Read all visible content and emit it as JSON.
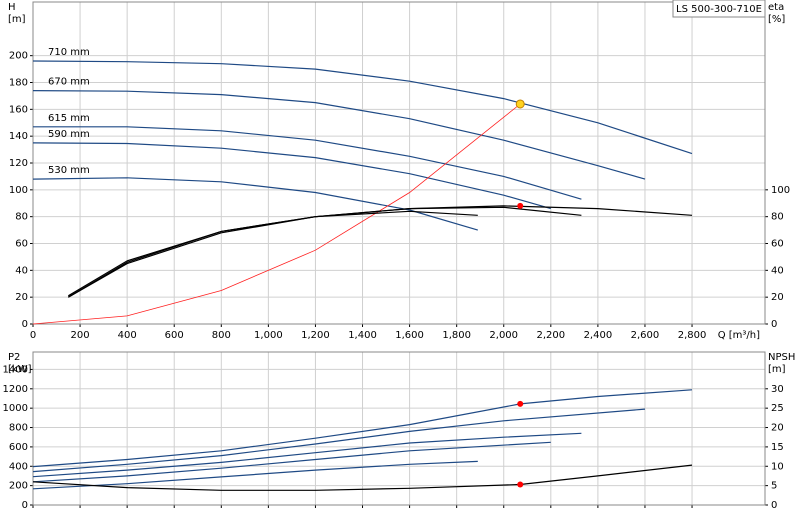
{
  "chart_data": [
    {
      "type": "line",
      "title": "LS 500-300-710E",
      "xlabel": "Q [m³/h]",
      "ylabel": "H",
      "ylabel_unit": "[m]",
      "y2label": "eta",
      "y2label_unit": "[%]",
      "xlim": [
        0,
        3110
      ],
      "xticks": [
        0,
        200,
        400,
        600,
        800,
        {
          "value": 1000,
          "label": "1,000"
        },
        {
          "value": 1200,
          "label": "1,200"
        },
        {
          "value": 1400,
          "label": "1,400"
        },
        {
          "value": 1600,
          "label": "1,600"
        },
        {
          "value": 1800,
          "label": "1,800"
        },
        {
          "value": 2000,
          "label": "2,000"
        },
        {
          "value": 2200,
          "label": "2,200"
        },
        {
          "value": 2400,
          "label": "2,400"
        },
        {
          "value": 2600,
          "label": "2,600"
        },
        {
          "value": 2800,
          "label": "2,800"
        }
      ],
      "ylim": [
        0,
        240
      ],
      "yticks": [
        0,
        20,
        40,
        60,
        80,
        100,
        120,
        140,
        160,
        180,
        200
      ],
      "y2lim": [
        0,
        240
      ],
      "y2ticks": [
        0,
        20,
        40,
        60,
        80,
        100
      ],
      "grid": true,
      "series": [
        {
          "name": "710 mm",
          "color": "#1f4a85",
          "x": [
            0,
            400,
            800,
            1200,
            1600,
            2000,
            2400,
            2800
          ],
          "values": [
            196,
            195.5,
            194,
            190,
            181,
            168,
            150,
            127
          ]
        },
        {
          "name": "670 mm",
          "color": "#1f4a85",
          "x": [
            0,
            400,
            800,
            1200,
            1600,
            2000,
            2400,
            2600
          ],
          "values": [
            174,
            173.5,
            171,
            165,
            153,
            137,
            118,
            108
          ]
        },
        {
          "name": "615 mm",
          "color": "#1f4a85",
          "x": [
            0,
            400,
            800,
            1200,
            1600,
            2000,
            2330
          ],
          "values": [
            147,
            147,
            144,
            137,
            125,
            110,
            93
          ]
        },
        {
          "name": "590 mm",
          "color": "#1f4a85",
          "x": [
            0,
            400,
            800,
            1200,
            1600,
            2000,
            2200
          ],
          "values": [
            135,
            134.5,
            131,
            124,
            112,
            96,
            86
          ]
        },
        {
          "name": "530 mm",
          "color": "#1f4a85",
          "x": [
            0,
            400,
            800,
            1200,
            1600,
            1890
          ],
          "values": [
            108,
            109,
            106,
            98,
            85,
            70
          ]
        },
        {
          "color": "#ff2020",
          "x": [
            0,
            400,
            800,
            1200,
            1600,
            2070
          ],
          "values": [
            0,
            6,
            25,
            55,
            98,
            164
          ]
        },
        {
          "color": "#000000",
          "axis": "y2",
          "x": [
            150,
            400,
            800,
            1200,
            1600,
            2000,
            2400,
            2800
          ],
          "values": [
            20,
            45,
            68,
            80,
            86,
            88,
            86,
            81
          ]
        },
        {
          "color": "#000000",
          "axis": "y2",
          "x": [
            150,
            400,
            800,
            1200,
            1600,
            2000,
            2330
          ],
          "values": [
            20,
            46,
            69,
            80,
            86,
            87,
            81
          ]
        },
        {
          "color": "#000000",
          "axis": "y2",
          "x": [
            150,
            400,
            800,
            1200,
            1600,
            1890
          ],
          "values": [
            21,
            47,
            69,
            80,
            84,
            81
          ]
        }
      ],
      "points": [
        {
          "x": 2070,
          "y": 164,
          "color": "#ffd21f"
        },
        {
          "x": 2070,
          "y": 88,
          "axis": "y2",
          "color": "#ff0000"
        }
      ]
    },
    {
      "type": "line",
      "ylabel": "P2",
      "ylabel_unit": "[kW]",
      "y2label": "NPSH",
      "y2label_unit": "[m]",
      "xlim": [
        0,
        3110
      ],
      "xticks": [
        0,
        200,
        400,
        600,
        800,
        1000,
        1200,
        1400,
        1600,
        1800,
        2000,
        2200,
        2400,
        2600,
        2800
      ],
      "xtick_labels": false,
      "ylim": [
        0,
        1580
      ],
      "yticks": [
        0,
        200,
        400,
        600,
        800,
        1000,
        1200,
        1400
      ],
      "y2lim": [
        0,
        39.5
      ],
      "y2ticks": [
        0,
        5,
        10,
        15,
        20,
        25,
        30
      ],
      "grid": true,
      "series": [
        {
          "color": "#1f4a85",
          "x": [
            0,
            400,
            800,
            1200,
            1600,
            2070,
            2400,
            2800
          ],
          "values": [
            397,
            470,
            560,
            690,
            830,
            1044,
            1120,
            1190
          ]
        },
        {
          "color": "#1f4a85",
          "x": [
            0,
            400,
            800,
            1200,
            1600,
            2000,
            2600
          ],
          "values": [
            345,
            420,
            510,
            630,
            760,
            870,
            990
          ]
        },
        {
          "color": "#1f4a85",
          "x": [
            0,
            400,
            800,
            1200,
            1600,
            2000,
            2330
          ],
          "values": [
            292,
            360,
            440,
            540,
            640,
            700,
            740
          ]
        },
        {
          "color": "#1f4a85",
          "x": [
            0,
            400,
            800,
            1200,
            1600,
            2200
          ],
          "values": [
            240,
            300,
            380,
            470,
            560,
            647
          ]
        },
        {
          "color": "#1f4a85",
          "x": [
            0,
            400,
            800,
            1200,
            1600,
            1890
          ],
          "values": [
            167,
            220,
            290,
            360,
            420,
            450
          ]
        },
        {
          "color": "#000000",
          "axis": "y2",
          "x": [
            0,
            400,
            800,
            1200,
            1600,
            2070,
            2400,
            2800
          ],
          "values": [
            6,
            4.5,
            3.8,
            3.8,
            4.3,
            5.3,
            7.5,
            10.3
          ]
        }
      ],
      "points": [
        {
          "x": 2070,
          "y": 1044,
          "color": "#ff0000"
        },
        {
          "x": 2070,
          "y": 5.3,
          "axis": "y2",
          "color": "#ff0000"
        }
      ]
    }
  ]
}
